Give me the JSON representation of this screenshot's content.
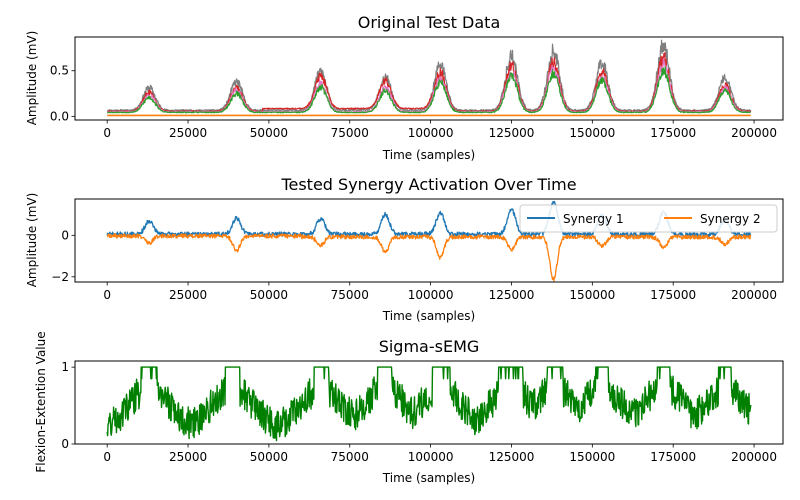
{
  "figure": {
    "background": "#ffffff"
  },
  "chart_data": [
    {
      "type": "line",
      "title": "Original Test Data",
      "xlabel": "Time (samples)",
      "ylabel": "Amplitude (mV)",
      "xlim": [
        -9950,
        208950
      ],
      "ylim": [
        -0.04,
        0.87
      ],
      "xticks": [
        0,
        25000,
        50000,
        75000,
        100000,
        125000,
        150000,
        175000,
        200000
      ],
      "yticks": [
        0.0,
        0.5
      ],
      "ytick_labels": [
        "0.0",
        "0.5"
      ],
      "grid": false,
      "series": [
        {
          "color": "#7f7f7f",
          "role": "envelope_max",
          "peaks": [
            [
              13000,
              0.33
            ],
            [
              40000,
              0.4
            ],
            [
              66000,
              0.52
            ],
            [
              86000,
              0.45
            ],
            [
              103000,
              0.6
            ],
            [
              125000,
              0.7
            ],
            [
              138000,
              0.75
            ],
            [
              153000,
              0.63
            ],
            [
              172000,
              0.82
            ],
            [
              191000,
              0.44
            ]
          ]
        },
        {
          "color": "#d62728",
          "role": "envelope_mid"
        },
        {
          "color": "#e377c2",
          "role": "envelope_mid"
        },
        {
          "color": "#2ca02c",
          "role": "envelope_mid"
        },
        {
          "color": "#ff7f0e",
          "role": "flat",
          "value": 0.01
        }
      ]
    },
    {
      "type": "line",
      "title": "Tested Synergy Activation Over Time",
      "xlabel": "Time (samples)",
      "ylabel": "Amplitude (mV)",
      "xlim": [
        -9950,
        208950
      ],
      "ylim": [
        -2.25,
        1.75
      ],
      "xticks": [
        0,
        25000,
        50000,
        75000,
        100000,
        125000,
        150000,
        175000,
        200000
      ],
      "yticks": [
        -2,
        0
      ],
      "ytick_labels": [
        "−2",
        "0"
      ],
      "legend": {
        "location": "upper right",
        "columns": 2
      },
      "grid": false,
      "series": [
        {
          "name": "Synergy 1",
          "color": "#1f77b4",
          "peaks": [
            [
              13000,
              0.65
            ],
            [
              40000,
              0.8
            ],
            [
              66000,
              0.75
            ],
            [
              86000,
              0.95
            ],
            [
              103000,
              1.05
            ],
            [
              125000,
              1.2
            ],
            [
              138000,
              1.55
            ],
            [
              153000,
              0.9
            ],
            [
              172000,
              1.1
            ],
            [
              191000,
              0.7
            ]
          ]
        },
        {
          "name": "Synergy 2",
          "color": "#ff7f0e",
          "troughs": [
            [
              13000,
              -0.35
            ],
            [
              40000,
              -0.7
            ],
            [
              66000,
              -0.4
            ],
            [
              86000,
              -0.75
            ],
            [
              103000,
              -1.0
            ],
            [
              125000,
              -0.6
            ],
            [
              138000,
              -2.05
            ],
            [
              153000,
              -0.45
            ],
            [
              172000,
              -0.5
            ],
            [
              191000,
              -0.35
            ]
          ]
        }
      ]
    },
    {
      "type": "line",
      "title": "Sigma-sEMG",
      "xlabel": "Time (samples)",
      "ylabel": "Flexion-Extention Value",
      "xlim": [
        -9950,
        208950
      ],
      "ylim": [
        0,
        1.08
      ],
      "xticks": [
        0,
        25000,
        50000,
        75000,
        100000,
        125000,
        150000,
        175000,
        200000
      ],
      "yticks": [
        0,
        1
      ],
      "ytick_labels": [
        "0",
        "1"
      ],
      "grid": false,
      "series": [
        {
          "color": "#008000",
          "plateaus": [
            [
              10500,
              15500
            ],
            [
              36500,
              41000
            ],
            [
              64000,
              68500
            ],
            [
              83500,
              88000
            ],
            [
              100500,
              106000
            ],
            [
              121000,
              128500
            ],
            [
              136000,
              141000
            ],
            [
              151000,
              155000
            ],
            [
              170000,
              174000
            ],
            [
              189000,
              193000
            ]
          ]
        }
      ]
    }
  ]
}
